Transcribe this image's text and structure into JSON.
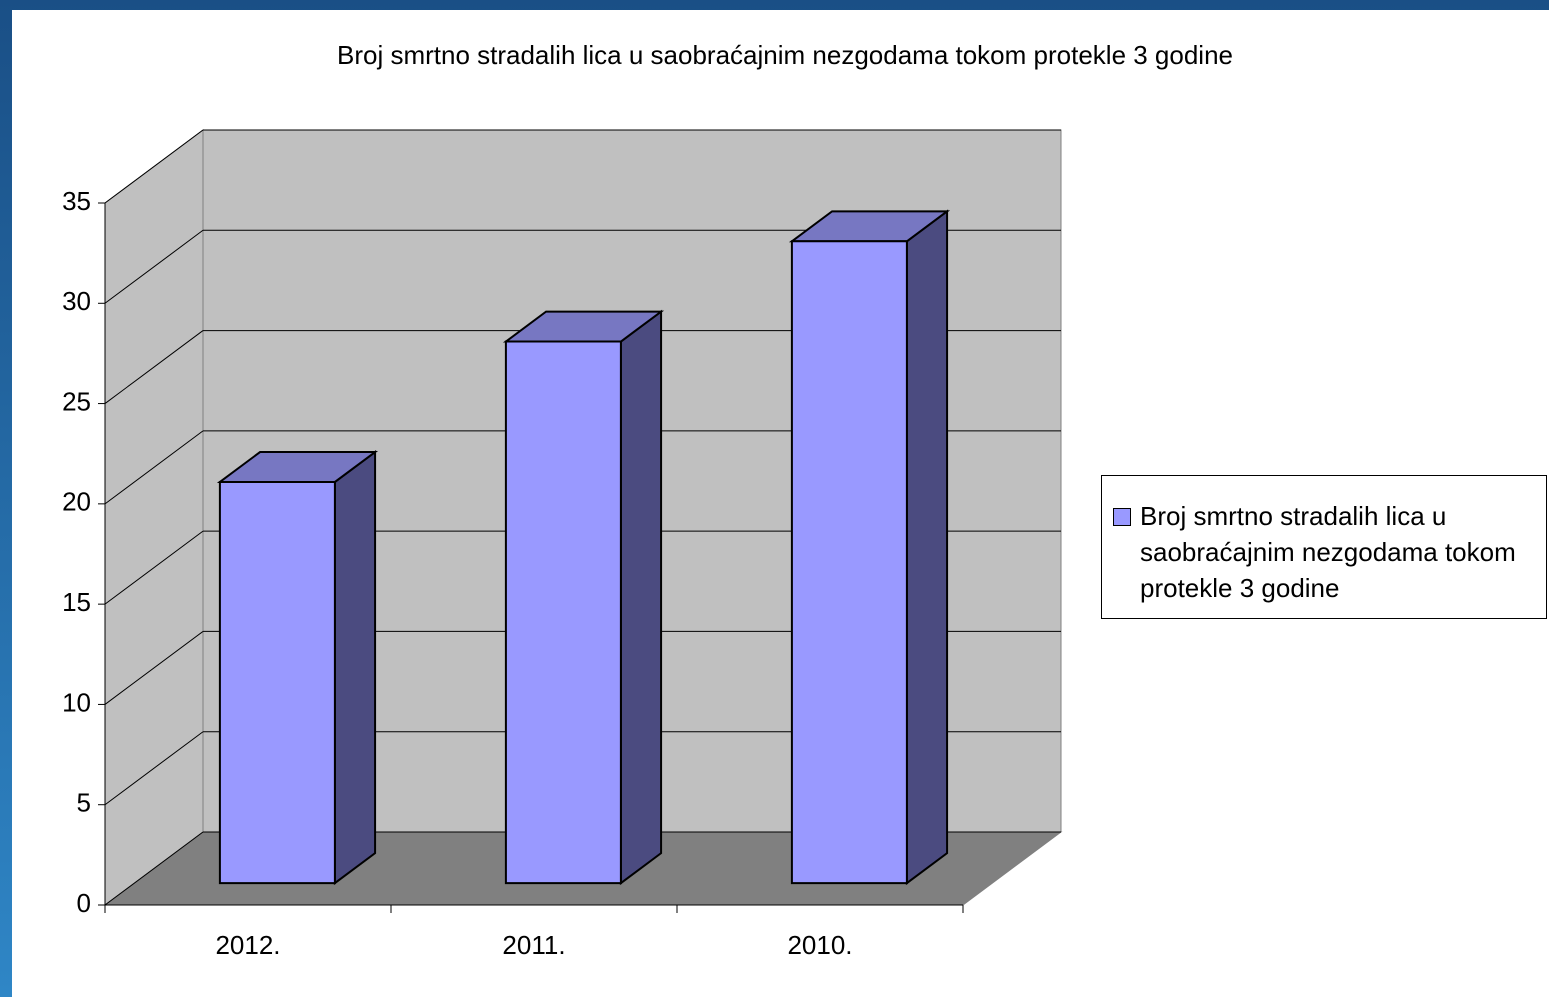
{
  "chart_data": {
    "type": "bar3d",
    "title": "Broj smrtno stradalih lica u saobraćajnim nezgodama tokom protekle 3 godine",
    "categories": [
      "2012.",
      "2011.",
      "2010."
    ],
    "series": [
      {
        "name": "Broj smrtno stradalih lica u saobraćajnim nezgodama tokom protekle 3 godine",
        "color": "#9999ff",
        "values": [
          20,
          27,
          32
        ]
      }
    ],
    "ylim": [
      0,
      35
    ],
    "yticks": [
      0,
      5,
      10,
      15,
      20,
      25,
      30,
      35
    ],
    "grid": true,
    "legend": "right"
  }
}
